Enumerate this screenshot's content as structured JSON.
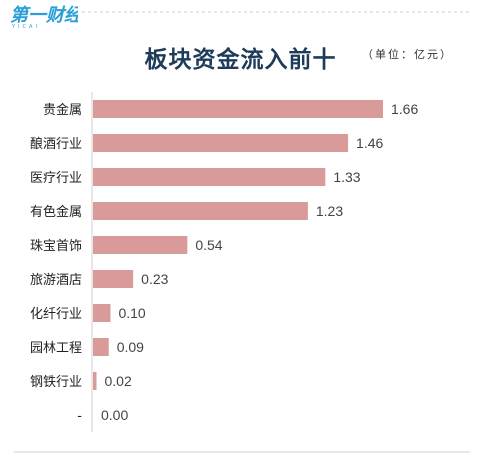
{
  "header": {
    "logo_text": "第一财经",
    "logo_sub": "YICAI"
  },
  "chart_data": {
    "type": "bar",
    "orientation": "horizontal",
    "title": "板块资金流入前十",
    "unit_note": "（单位：亿元）",
    "categories": [
      "贵金属",
      "酿酒行业",
      "医疗行业",
      "有色金属",
      "珠宝首饰",
      "旅游酒店",
      "化纤行业",
      "园林工程",
      "钢铁行业",
      "-"
    ],
    "values": [
      1.66,
      1.46,
      1.33,
      1.23,
      0.54,
      0.23,
      0.1,
      0.09,
      0.02,
      0.0
    ],
    "value_labels": [
      "1.66",
      "1.46",
      "1.33",
      "1.23",
      "0.54",
      "0.23",
      "0.10",
      "0.09",
      "0.02",
      "0.00"
    ],
    "xlim": [
      0,
      1.66
    ],
    "grid": false,
    "colors": {
      "bar": "#d99a9a",
      "title": "#1f3b5a",
      "logo": "#2a9fd8"
    }
  }
}
